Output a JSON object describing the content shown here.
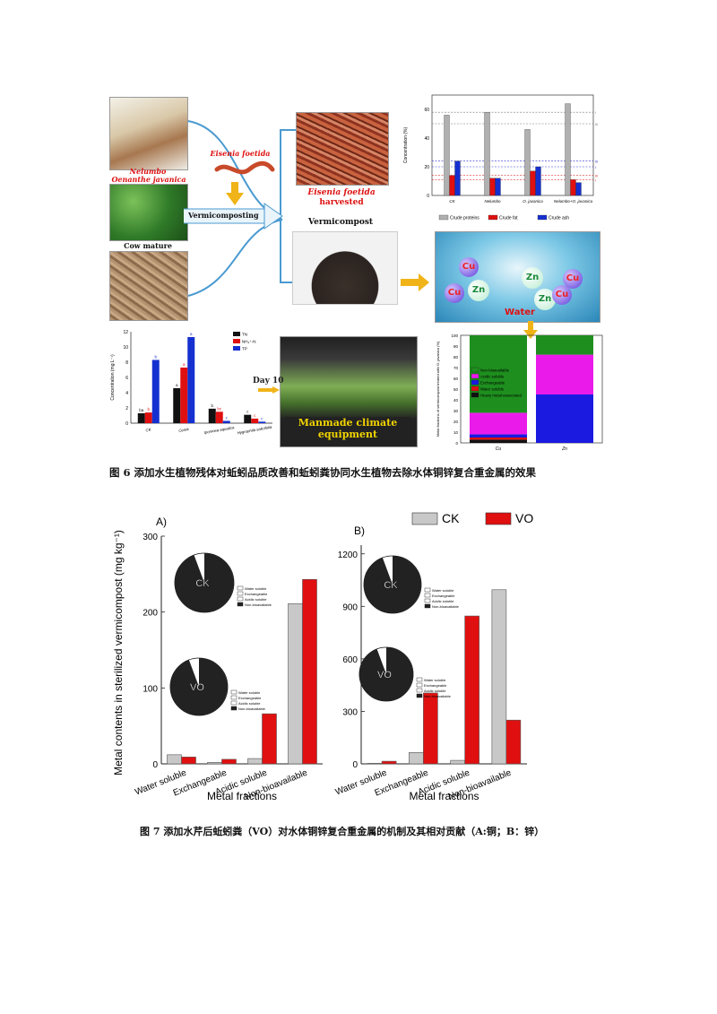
{
  "fig6": {
    "caption": "图 6  添加水生植物残体对蚯蚓品质改善和蚯蚓粪协同水生植物去除水体铜锌复合重金属的效果",
    "labels": {
      "nelumbo": "Nelumbo",
      "oenanthe": "Oenanthe javanica",
      "cow": "Cow mature",
      "eisenia": "Eisenia foetida",
      "vermicomposting": "Vermicomposting",
      "harvest_species": "Eisenia foetida",
      "harvested": "harvested",
      "vermicompost": "Vermicompost",
      "water": "Water",
      "day": "Day 10",
      "climate": "Manmade climate equipment",
      "ions": [
        "Cu",
        "Zn",
        "Cu",
        "Zn",
        "Cu",
        "Zn",
        "Cu"
      ]
    },
    "chart_top_right": {
      "type": "bar",
      "ylabel": "Concentration (%)",
      "yticks": [
        "0",
        "20",
        "40",
        "60"
      ],
      "ylim": [
        0,
        70
      ],
      "categories": [
        "CK",
        "Nelumbo",
        "O. javanica",
        "Nelumbo+O. javanica"
      ],
      "series": [
        {
          "name": "Crude proteins",
          "color": "#b0b0b0",
          "values": [
            56,
            58,
            46,
            64
          ]
        },
        {
          "name": "Crude fat",
          "color": "#e01010",
          "values": [
            14,
            12,
            17,
            11
          ]
        },
        {
          "name": "Crude ash",
          "color": "#1530d0",
          "values": [
            24,
            12,
            20,
            9
          ]
        }
      ],
      "ref_labels": [
        "I",
        "III",
        "III",
        "I",
        "III",
        "I"
      ]
    },
    "chart_bottom_left": {
      "type": "bar",
      "ylabel": "Concentration (mg L⁻¹)",
      "yticks": [
        "0",
        "2",
        "4",
        "6",
        "8",
        "10",
        "12"
      ],
      "ylim": [
        0,
        12
      ],
      "categories": [
        "CK",
        "Cerek",
        "Ipomoea aquatica",
        "Hygrophila salicifolia"
      ],
      "series": [
        {
          "name": "TN",
          "color": "#111111",
          "values": [
            1.3,
            4.6,
            1.9,
            1.1
          ]
        },
        {
          "name": "NH₄⁺-N",
          "color": "#e01010",
          "values": [
            1.4,
            7.3,
            1.5,
            0.6
          ]
        },
        {
          "name": "TP",
          "color": "#1530d0",
          "values": [
            8.3,
            11.3,
            0.3,
            0.2
          ]
        }
      ],
      "letters": [
        [
          "ba",
          "b",
          "b"
        ],
        [
          "a",
          "a",
          "a"
        ],
        [
          "b",
          "bc",
          "c"
        ],
        [
          "c",
          "c",
          "c"
        ]
      ]
    },
    "chart_bottom_right": {
      "type": "bar",
      "ylabel": "Metal fractions of vermicompost treated with O. javanica (%)",
      "yticks": [
        "0",
        "10",
        "20",
        "30",
        "40",
        "50",
        "60",
        "70",
        "80",
        "90",
        "100"
      ],
      "categories": [
        "Cu",
        "Zn"
      ],
      "series": [
        {
          "name": "Non-bioavailable",
          "color": "#1e8f1e",
          "values": [
            72,
            18
          ]
        },
        {
          "name": "Acidic soluble",
          "color": "#ea1bea",
          "values": [
            20,
            37
          ]
        },
        {
          "name": "Exchangeable",
          "color": "#1a1ae0",
          "values": [
            3,
            45
          ]
        },
        {
          "name": "Water soluble",
          "color": "#e01010",
          "values": [
            2,
            0
          ]
        },
        {
          "name": "Heavy metal-associated",
          "color": "#111111",
          "values": [
            3,
            0
          ]
        }
      ]
    }
  },
  "fig7": {
    "caption": "图 7  添加水芹后蚯蚓粪（VO）对水体铜锌复合重金属的机制及其相对贡献（A:铜；B：锌）",
    "legend": [
      {
        "name": "CK",
        "color": "#c8c8c8"
      },
      {
        "name": "VO",
        "color": "#e01010"
      }
    ],
    "ylabel": "Metal contents  in sterilized vermicompost (mg kg⁻¹)",
    "xlabel": "Metal fractions",
    "categories": [
      "Water soluble",
      "Exchangeable",
      "Acidic soluble",
      "Non-bioavailable"
    ],
    "panels": [
      {
        "label": "A)",
        "yticks": [
          "0",
          "100",
          "200",
          "300"
        ],
        "ylim": [
          0,
          300
        ],
        "ck": [
          12,
          2,
          7,
          211
        ],
        "vo": [
          9,
          6,
          66,
          243
        ],
        "pies": [
          {
            "label": "CK",
            "legend": [
              "Water soluble",
              "Exchangeable",
              "Acidic soluble",
              "Non-bioavailable"
            ]
          },
          {
            "label": "VO",
            "legend": [
              "Water soluble",
              "Exchangeable",
              "Acidic soluble",
              "Non-bioavailable"
            ]
          }
        ]
      },
      {
        "label": "B)",
        "yticks": [
          "0",
          "300",
          "600",
          "900",
          "1200"
        ],
        "ylim": [
          0,
          1250
        ],
        "ck": [
          3,
          65,
          20,
          995
        ],
        "vo": [
          15,
          405,
          845,
          250
        ],
        "pies": [
          {
            "label": "CK",
            "legend": [
              "Water soluble",
              "Exchangeable",
              "Acidic soluble",
              "Non-bioavailable"
            ]
          },
          {
            "label": "VO",
            "legend": [
              "Water soluble",
              "Exchangeable",
              "Acidic soluble",
              "Non-bioavailable"
            ]
          }
        ]
      }
    ]
  }
}
